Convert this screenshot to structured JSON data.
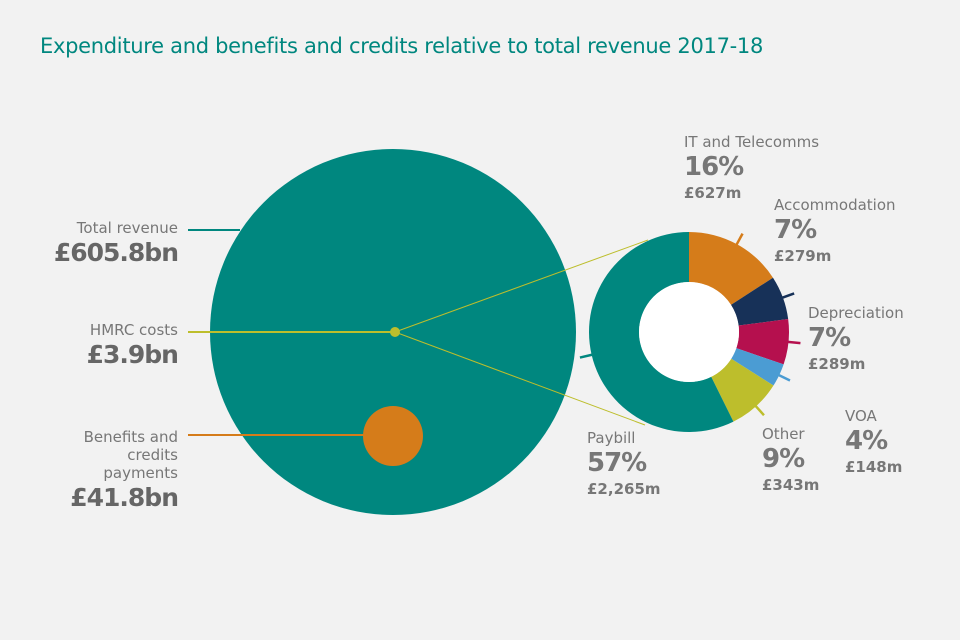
{
  "chart_data": {
    "type": "pie",
    "title": "Expenditure and benefits and credits relative to total revenue 2017-18",
    "circles": [
      {
        "label": "Total revenue",
        "value_text": "£605.8bn",
        "value_bn": 605.8,
        "color": "#00877f"
      },
      {
        "label": "HMRC costs",
        "value_text": "£3.9bn",
        "value_bn": 3.9,
        "color": "#bdbe2c"
      },
      {
        "label": "Benefits and credits payments",
        "value_text": "£41.8bn",
        "value_bn": 41.8,
        "color": "#d57c1a"
      }
    ],
    "donut": {
      "slices": [
        {
          "label": "IT and Telecomms",
          "percent": "16%",
          "value_text": "£627m",
          "value": 627,
          "color": "#d57c1a"
        },
        {
          "label": "Accommodation",
          "percent": "7%",
          "value_text": "£279m",
          "value": 279,
          "color": "#173158"
        },
        {
          "label": "Depreciation",
          "percent": "7%",
          "value_text": "£289m",
          "value": 289,
          "color": "#b5104e"
        },
        {
          "label": "VOA",
          "percent": "4%",
          "value_text": "£148m",
          "value": 148,
          "color": "#4b9cd3"
        },
        {
          "label": "Other",
          "percent": "9%",
          "value_text": "£343m",
          "value": 343,
          "color": "#bdbe2c"
        },
        {
          "label": "Paybill",
          "percent": "57%",
          "value_text": "£2,265m",
          "value": 2265,
          "color": "#00877f"
        }
      ]
    }
  }
}
